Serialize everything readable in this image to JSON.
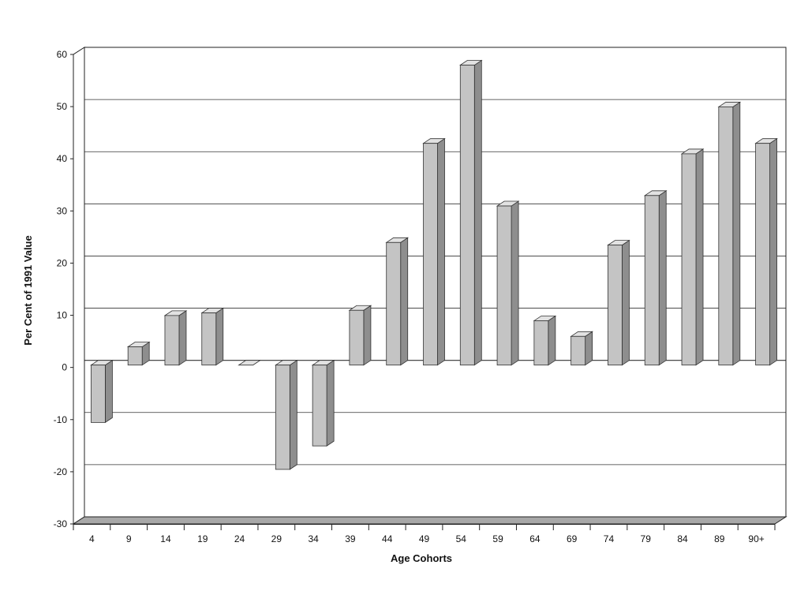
{
  "chart_data": {
    "type": "bar",
    "title": "",
    "xlabel": "Age Cohorts",
    "ylabel": "Per Cent of 1991 Value",
    "ylim": [
      -30,
      60
    ],
    "yticks": [
      60,
      50,
      40,
      30,
      20,
      10,
      0,
      -10,
      -20,
      -30
    ],
    "grid": true,
    "categories": [
      "4",
      "9",
      "14",
      "19",
      "24",
      "29",
      "34",
      "39",
      "44",
      "49",
      "54",
      "59",
      "64",
      "69",
      "74",
      "79",
      "84",
      "89",
      "90+"
    ],
    "values": [
      -11,
      3.5,
      9.5,
      10,
      0,
      -20,
      -15.5,
      10.5,
      23.5,
      42.5,
      57.5,
      30.5,
      8.5,
      5.5,
      23,
      32.5,
      40.5,
      49.5,
      42.5
    ],
    "colors": {
      "bar_front": "#c4c4c4",
      "bar_side": "#8e8e8e",
      "bar_top": "#e2e2e2",
      "floor": "#a8a8a8",
      "grid": "#333333",
      "axis": "#222222"
    }
  }
}
